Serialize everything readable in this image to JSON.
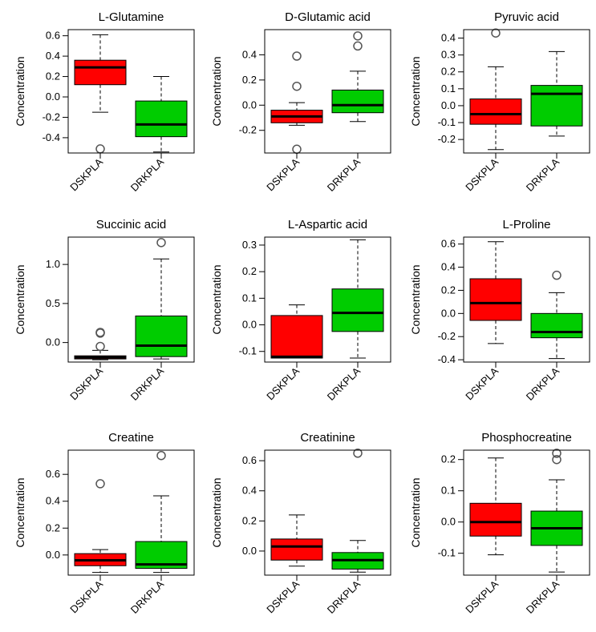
{
  "colors": {
    "DSKPLA": "#ff0000",
    "DRKPLA": "#00cc00",
    "box_border": "#000000"
  },
  "chart_data": [
    {
      "type": "boxplot",
      "title": "L-Glutamine",
      "ylabel": "Concentration",
      "ylim": [
        -0.55,
        0.66
      ],
      "yticks": [
        0.6,
        0.4,
        0.2,
        0.0,
        -0.2,
        -0.4
      ],
      "ytick_labels": [
        "0.6",
        "0.4",
        "0.2",
        "0.0",
        "-0.2",
        "-0.4"
      ],
      "groups": [
        {
          "name": "DSKPLA",
          "whisker_low": -0.15,
          "q1": 0.12,
          "median": 0.29,
          "q3": 0.36,
          "whisker_high": 0.61,
          "outliers": [
            -0.51
          ]
        },
        {
          "name": "DRKPLA",
          "whisker_low": -0.54,
          "q1": -0.39,
          "median": -0.27,
          "q3": -0.04,
          "whisker_high": 0.2,
          "outliers": []
        }
      ]
    },
    {
      "type": "boxplot",
      "title": "D-Glutamic acid",
      "ylabel": "Concentration",
      "ylim": [
        -0.38,
        0.6
      ],
      "yticks": [
        0.4,
        0.2,
        0.0,
        -0.2
      ],
      "ytick_labels": [
        "0.4",
        "0.2",
        "0.0",
        "-0.2"
      ],
      "groups": [
        {
          "name": "DSKPLA",
          "whisker_low": -0.16,
          "q1": -0.14,
          "median": -0.09,
          "q3": -0.04,
          "whisker_high": 0.02,
          "outliers": [
            0.39,
            0.15,
            -0.35
          ]
        },
        {
          "name": "DRKPLA",
          "whisker_low": -0.13,
          "q1": -0.06,
          "median": 0.0,
          "q3": 0.12,
          "whisker_high": 0.27,
          "outliers": [
            0.55,
            0.47
          ]
        }
      ]
    },
    {
      "type": "boxplot",
      "title": "Pyruvic acid",
      "ylabel": "Concentration",
      "ylim": [
        -0.28,
        0.45
      ],
      "yticks": [
        0.4,
        0.3,
        0.2,
        0.1,
        0.0,
        -0.1,
        -0.2
      ],
      "ytick_labels": [
        "0.4",
        "0.3",
        "0.2",
        "0.1",
        "0.0",
        "-0.1",
        "-0.2"
      ],
      "groups": [
        {
          "name": "DSKPLA",
          "whisker_low": -0.26,
          "q1": -0.11,
          "median": -0.05,
          "q3": 0.04,
          "whisker_high": 0.23,
          "outliers": [
            0.43
          ]
        },
        {
          "name": "DRKPLA",
          "whisker_low": -0.18,
          "q1": -0.12,
          "median": 0.07,
          "q3": 0.12,
          "whisker_high": 0.32,
          "outliers": []
        }
      ]
    },
    {
      "type": "boxplot",
      "title": "Succinic acid",
      "ylabel": "Concentration",
      "ylim": [
        -0.25,
        1.35
      ],
      "yticks": [
        1.0,
        0.5,
        0.0
      ],
      "ytick_labels": [
        "1.0",
        "0.5",
        "0.0"
      ],
      "groups": [
        {
          "name": "DSKPLA",
          "whisker_low": -0.22,
          "q1": -0.21,
          "median": -0.19,
          "q3": -0.17,
          "whisker_high": -0.1,
          "outliers": [
            0.13,
            0.12,
            -0.05
          ]
        },
        {
          "name": "DRKPLA",
          "whisker_low": -0.21,
          "q1": -0.18,
          "median": -0.04,
          "q3": 0.34,
          "whisker_high": 1.07,
          "outliers": [
            1.28
          ]
        }
      ]
    },
    {
      "type": "boxplot",
      "title": "L-Aspartic acid",
      "ylabel": "Concentration",
      "ylim": [
        -0.14,
        0.33
      ],
      "yticks": [
        0.3,
        0.2,
        0.1,
        0.0,
        -0.1
      ],
      "ytick_labels": [
        "0.3",
        "0.2",
        "0.1",
        "0.0",
        "-0.1"
      ],
      "groups": [
        {
          "name": "DSKPLA",
          "whisker_low": -0.125,
          "q1": -0.125,
          "median": -0.12,
          "q3": 0.035,
          "whisker_high": 0.075,
          "outliers": []
        },
        {
          "name": "DRKPLA",
          "whisker_low": -0.125,
          "q1": -0.025,
          "median": 0.045,
          "q3": 0.135,
          "whisker_high": 0.32,
          "outliers": []
        }
      ]
    },
    {
      "type": "boxplot",
      "title": "L-Proline",
      "ylabel": "Concentration",
      "ylim": [
        -0.42,
        0.66
      ],
      "yticks": [
        0.6,
        0.4,
        0.2,
        0.0,
        -0.2,
        -0.4
      ],
      "ytick_labels": [
        "0.6",
        "0.4",
        "0.2",
        "0.0",
        "-0.2",
        "-0.4"
      ],
      "groups": [
        {
          "name": "DSKPLA",
          "whisker_low": -0.26,
          "q1": -0.06,
          "median": 0.09,
          "q3": 0.3,
          "whisker_high": 0.62,
          "outliers": []
        },
        {
          "name": "DRKPLA",
          "whisker_low": -0.39,
          "q1": -0.21,
          "median": -0.16,
          "q3": 0.0,
          "whisker_high": 0.18,
          "outliers": [
            0.33
          ]
        }
      ]
    },
    {
      "type": "boxplot",
      "title": "Creatine",
      "ylabel": "Concentration",
      "ylim": [
        -0.15,
        0.78
      ],
      "yticks": [
        0.6,
        0.4,
        0.2,
        0.0
      ],
      "ytick_labels": [
        "0.6",
        "0.4",
        "0.2",
        "0.0"
      ],
      "groups": [
        {
          "name": "DSKPLA",
          "whisker_low": -0.13,
          "q1": -0.08,
          "median": -0.04,
          "q3": 0.01,
          "whisker_high": 0.04,
          "outliers": [
            0.53
          ]
        },
        {
          "name": "DRKPLA",
          "whisker_low": -0.13,
          "q1": -0.1,
          "median": -0.07,
          "q3": 0.1,
          "whisker_high": 0.44,
          "outliers": [
            0.74
          ]
        }
      ]
    },
    {
      "type": "boxplot",
      "title": "Creatinine",
      "ylabel": "Concentration",
      "ylim": [
        -0.16,
        0.67
      ],
      "yticks": [
        0.6,
        0.4,
        0.2,
        0.0
      ],
      "ytick_labels": [
        "0.6",
        "0.4",
        "0.2",
        "0.0"
      ],
      "groups": [
        {
          "name": "DSKPLA",
          "whisker_low": -0.1,
          "q1": -0.06,
          "median": 0.03,
          "q3": 0.08,
          "whisker_high": 0.24,
          "outliers": []
        },
        {
          "name": "DRKPLA",
          "whisker_low": -0.14,
          "q1": -0.12,
          "median": -0.06,
          "q3": -0.01,
          "whisker_high": 0.07,
          "outliers": [
            0.65
          ]
        }
      ]
    },
    {
      "type": "boxplot",
      "title": "Phosphocreatine",
      "ylabel": "Concentration",
      "ylim": [
        -0.17,
        0.23
      ],
      "yticks": [
        0.2,
        0.1,
        0.0,
        -0.1
      ],
      "ytick_labels": [
        "0.2",
        "0.1",
        "0.0",
        "-0.1"
      ],
      "groups": [
        {
          "name": "DSKPLA",
          "whisker_low": -0.105,
          "q1": -0.045,
          "median": 0.0,
          "q3": 0.06,
          "whisker_high": 0.205,
          "outliers": []
        },
        {
          "name": "DRKPLA",
          "whisker_low": -0.16,
          "q1": -0.075,
          "median": -0.02,
          "q3": 0.035,
          "whisker_high": 0.135,
          "outliers": [
            0.22,
            0.2
          ]
        }
      ]
    }
  ]
}
